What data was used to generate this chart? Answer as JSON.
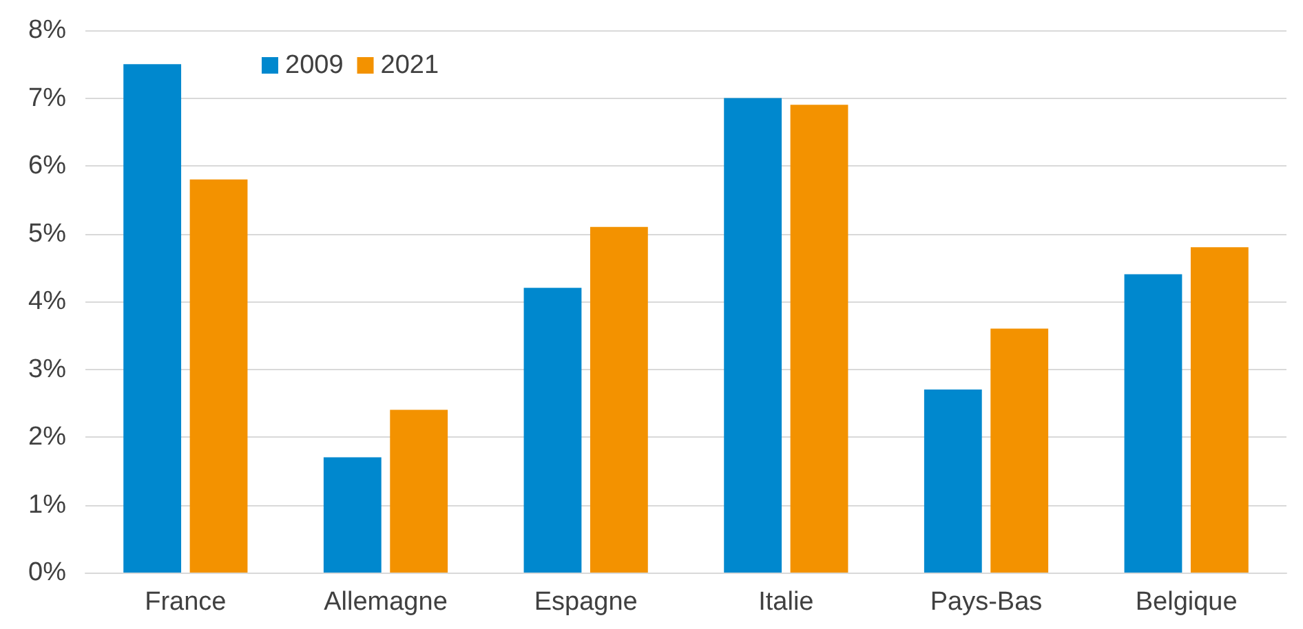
{
  "chart_data": {
    "type": "bar",
    "categories": [
      "France",
      "Allemagne",
      "Espagne",
      "Italie",
      "Pays-Bas",
      "Belgique"
    ],
    "series": [
      {
        "name": "2009",
        "color": "#0088ce",
        "values": [
          7.5,
          1.7,
          4.2,
          7.0,
          2.7,
          4.4
        ]
      },
      {
        "name": "2021",
        "color": "#f39200",
        "values": [
          5.8,
          2.4,
          5.1,
          6.9,
          3.6,
          4.8
        ]
      }
    ],
    "ylim": [
      0,
      8
    ],
    "yticks": [
      {
        "value": 0,
        "label": "0%"
      },
      {
        "value": 1,
        "label": "1%"
      },
      {
        "value": 2,
        "label": "2%"
      },
      {
        "value": 3,
        "label": "3%"
      },
      {
        "value": 4,
        "label": "4%"
      },
      {
        "value": 5,
        "label": "5%"
      },
      {
        "value": 6,
        "label": "6%"
      },
      {
        "value": 7,
        "label": "7%"
      },
      {
        "value": 8,
        "label": "8%"
      }
    ],
    "grid": "y",
    "legend": "top left"
  }
}
